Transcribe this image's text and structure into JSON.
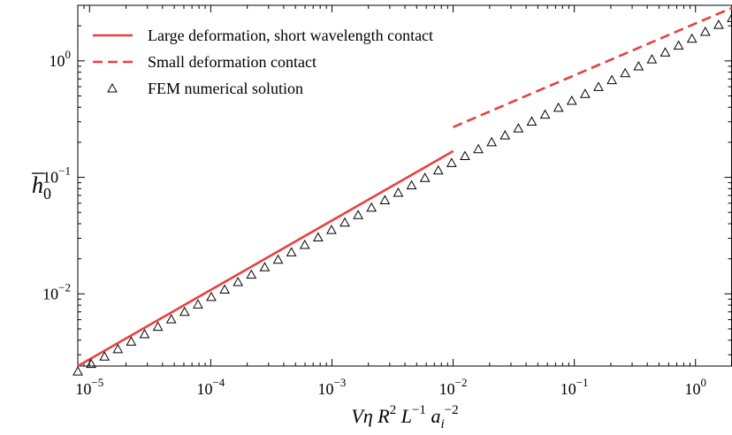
{
  "chart_data": {
    "type": "line",
    "xscale": "log",
    "yscale": "log",
    "xlim": [
      8e-06,
      2.0
    ],
    "ylim": [
      0.0024,
      3.0
    ],
    "xlabel": {
      "parts": [
        {
          "t": "Vη",
          "i": true
        },
        {
          "t": " "
        },
        {
          "t": "R",
          "i": true
        },
        {
          "t": "2",
          "sup": true
        },
        {
          "t": " "
        },
        {
          "t": "L",
          "i": true
        },
        {
          "t": "−1",
          "sup": true
        },
        {
          "t": " "
        },
        {
          "t": "a",
          "i": true
        },
        {
          "t": "i",
          "i": true,
          "sub": true
        },
        {
          "t": "−2",
          "sup": true
        }
      ]
    },
    "ylabel": {
      "base": "h",
      "sub": "0",
      "overbar": true
    },
    "xticks": [
      {
        "value": 1e-05,
        "base": "10",
        "exp": "−5"
      },
      {
        "value": 0.0001,
        "base": "10",
        "exp": "−4"
      },
      {
        "value": 0.001,
        "base": "10",
        "exp": "−3"
      },
      {
        "value": 0.01,
        "base": "10",
        "exp": "−2"
      },
      {
        "value": 0.1,
        "base": "10",
        "exp": "−1"
      },
      {
        "value": 1,
        "base": "10",
        "exp": "0"
      }
    ],
    "yticks": [
      {
        "value": 0.01,
        "base": "10",
        "exp": "−2"
      },
      {
        "value": 0.1,
        "base": "10",
        "exp": "−1"
      },
      {
        "value": 1,
        "base": "10",
        "exp": "0"
      }
    ],
    "legend_position": "top-left",
    "series": [
      {
        "name": "Large deformation, short wavelength contact",
        "style": "solid",
        "color": "#e8403f",
        "x": [
          8e-06,
          0.01
        ],
        "y": [
          0.0024,
          0.168
        ]
      },
      {
        "name": "Small deformation contact",
        "style": "dashed",
        "color": "#e8403f",
        "x": [
          0.01,
          2.0
        ],
        "y": [
          0.27,
          2.85
        ]
      },
      {
        "name": "FEM numerical solution",
        "style": "triangle-markers",
        "color": "#000000",
        "x_range": [
          8e-06,
          2.0
        ],
        "n_points": 50,
        "y_formula": "0.135*(x/0.01)^0.58 for x<=0.01; 0.135*(x/0.01)^0.538 for x>0.01",
        "y_at_x": {
          "1e-05": 0.00245,
          "0.001": 0.0355,
          "0.01": 0.135,
          "0.1": 0.47,
          "1": 1.6
        }
      }
    ]
  }
}
